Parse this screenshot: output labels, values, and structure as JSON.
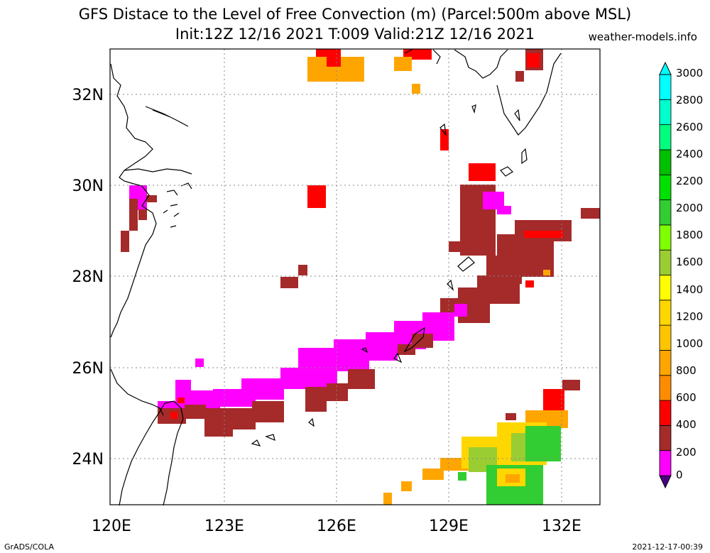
{
  "title_line1": "GFS Distace to the Level of Free Convection (m) (Parcel:500m above MSL)",
  "title_line2": "Init:12Z 12/16 2021 T:009 Valid:21Z 12/16 2021",
  "credit": "weather-models.info",
  "footer_left": "GrADS/COLA",
  "footer_right": "2021-12-17-00:39",
  "lon_labels": [
    "120E",
    "123E",
    "126E",
    "129E",
    "132E"
  ],
  "lat_labels": [
    "32N",
    "30N",
    "28N",
    "26N",
    "24N"
  ],
  "colorbar": {
    "labels": [
      "0",
      "200",
      "400",
      "600",
      "800",
      "1000",
      "1200",
      "1400",
      "1600",
      "1800",
      "2000",
      "2200",
      "2400",
      "2600",
      "2800",
      "3000"
    ],
    "colors": [
      "#4b0082",
      "#ff00ff",
      "#a52a2a",
      "#ff0000",
      "#ff8c00",
      "#ffa500",
      "#ffc400",
      "#ffd700",
      "#ffff00",
      "#9acd32",
      "#7fff00",
      "#32cd32",
      "#00e000",
      "#00c000",
      "#00ff7f",
      "#00ffcc",
      "#00ffff"
    ]
  },
  "chart_data": {
    "type": "heatmap",
    "title": "GFS Distace to the Level of Free Convection (m) (Parcel:500m above MSL)",
    "subtitle": "Init:12Z 12/16 2021 T:009 Valid:21Z 12/16 2021",
    "lon_range": [
      120,
      133
    ],
    "lat_range": [
      23,
      33
    ],
    "units": "m",
    "value_range": [
      0,
      3000
    ],
    "regions": [
      {
        "band": "200",
        "lon": [
          121.2,
          128.5
        ],
        "lat": [
          24.9,
          27.3
        ]
      },
      {
        "band": "400",
        "lon": [
          121.5,
          132.2
        ],
        "lat": [
          24.5,
          30.0
        ]
      },
      {
        "band": "600",
        "lon": [
          125.2,
          125.7
        ],
        "lat": [
          29.5,
          30.0
        ]
      },
      {
        "band": "1000-2800",
        "lon": [
          128.8,
          132.3
        ],
        "lat": [
          23.0,
          25.8
        ]
      }
    ]
  }
}
